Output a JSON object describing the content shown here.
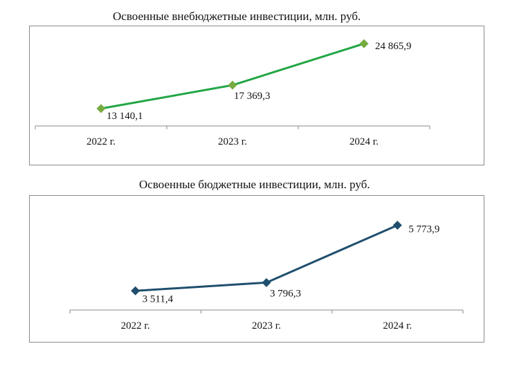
{
  "chart_data": [
    {
      "type": "line",
      "title": "Освоенные внебюджетные инвестиции, млн. руб.",
      "categories": [
        "2022 г.",
        "2023 г.",
        "2024 г."
      ],
      "series": [
        {
          "values": [
            13140.1,
            17369.3,
            24865.9
          ],
          "labels": [
            "13 140,1",
            "17 369,3",
            "24 865,9"
          ]
        }
      ],
      "line_color": "#21a644",
      "marker_color": "#77ab3f",
      "marker": "diamond",
      "ylim": [
        10500,
        25500
      ],
      "grid": false,
      "legend": "none"
    },
    {
      "type": "line",
      "title": "Освоенные бюджетные инвестиции, млн. руб.",
      "categories": [
        "2022 г.",
        "2023 г.",
        "2024 г."
      ],
      "series": [
        {
          "values": [
            3511.4,
            3796.3,
            5773.9
          ],
          "labels": [
            "3 511,4",
            "3 796,3",
            "5 773,9"
          ]
        }
      ],
      "line_color": "#1f4e6e",
      "marker_color": "#1f4e6e",
      "marker": "diamond",
      "ylim": [
        2850,
        6000
      ],
      "grid": false,
      "legend": "none"
    }
  ]
}
